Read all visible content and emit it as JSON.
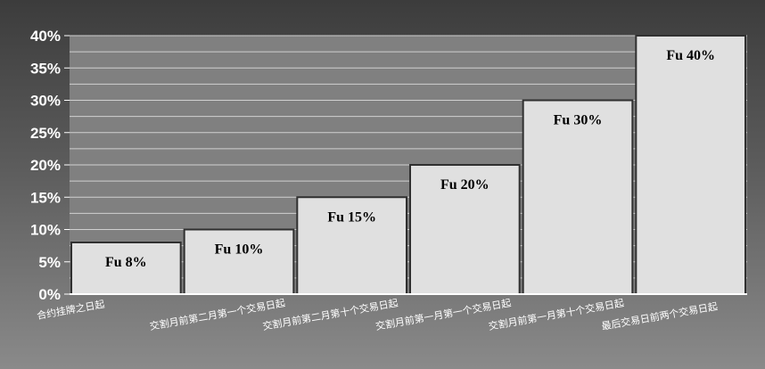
{
  "chart_data": {
    "type": "bar",
    "categories": [
      "合约挂牌之日起",
      "交割月前第二月第一个交易日起",
      "交割月前第二月第十个交易日起",
      "交割月前第一月第一个交易日起",
      "交割月前第一月第十个交易日起",
      "最后交易日前两个交易日起"
    ],
    "values": [
      8,
      10,
      15,
      20,
      30,
      40
    ],
    "data_labels": [
      "Fu 8%",
      "Fu 10%",
      "Fu 15%",
      "Fu 20%",
      "Fu 30%",
      "Fu 40%"
    ],
    "y_ticks": [
      "0%",
      "5%",
      "10%",
      "15%",
      "20%",
      "25%",
      "30%",
      "35%",
      "40%"
    ],
    "ylim": [
      0,
      40
    ],
    "grid": true,
    "legend": "none",
    "colors": {
      "bar": "#e0e0e0",
      "bar_stroke": "#303030",
      "plot_bg": "#808080",
      "grid": "#d0d0d0",
      "text": "#ffffff"
    }
  }
}
